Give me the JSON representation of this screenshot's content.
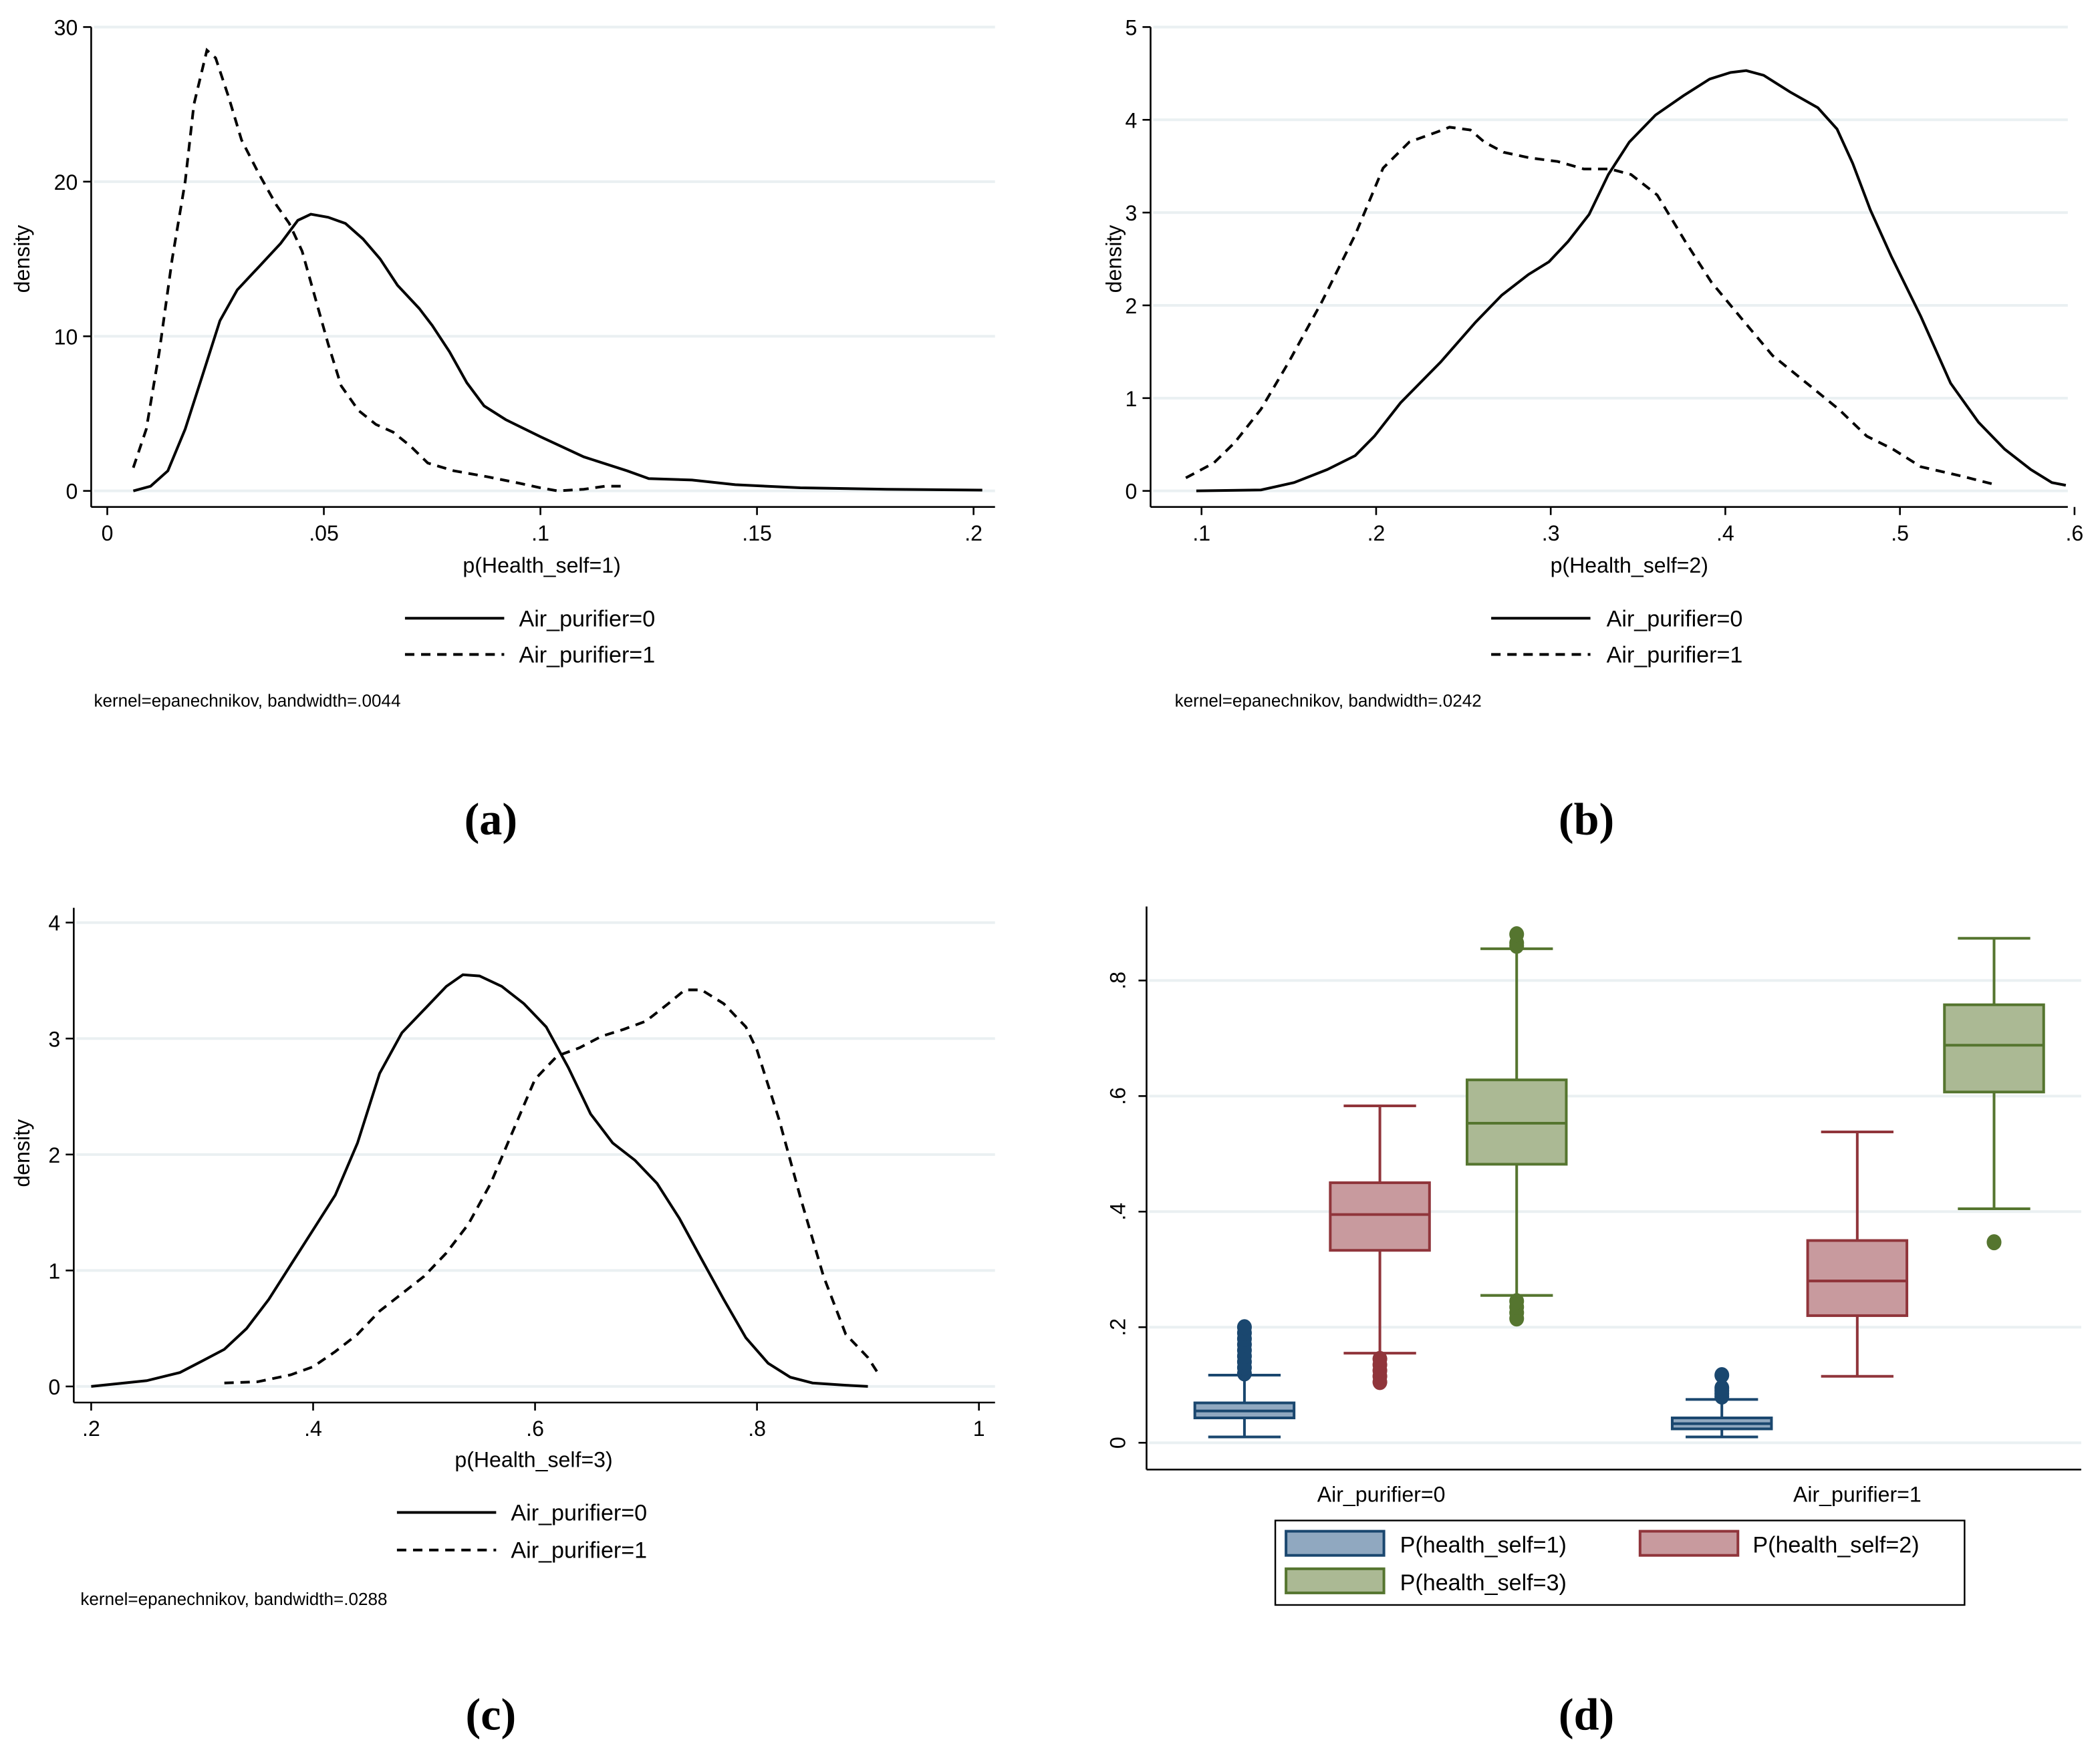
{
  "chart_data": [
    {
      "type": "line",
      "panel_label": "(a)",
      "xlabel": "p(Health_self=1)",
      "ylabel": "density",
      "xlim": [
        0,
        0.2
      ],
      "ylim": [
        0,
        30
      ],
      "xticks": [
        0,
        0.05,
        0.1,
        0.15,
        0.2
      ],
      "xtick_labels": [
        "0",
        ".05",
        ".1",
        ".15",
        ".2"
      ],
      "yticks": [
        0,
        10,
        20,
        30
      ],
      "ytick_labels": [
        "0",
        "10",
        "20",
        "30"
      ],
      "grid": true,
      "legend": "bottom",
      "note": "kernel=epanechnikov, bandwidth=.0044",
      "series": [
        {
          "name": "Air_purifier=0",
          "style": "solid",
          "x": [
            0.006,
            0.01,
            0.014,
            0.018,
            0.022,
            0.026,
            0.03,
            0.035,
            0.04,
            0.044,
            0.047,
            0.051,
            0.055,
            0.059,
            0.063,
            0.067,
            0.072,
            0.075,
            0.079,
            0.083,
            0.087,
            0.092,
            0.1,
            0.11,
            0.12,
            0.125,
            0.135,
            0.145,
            0.16,
            0.18,
            0.202
          ],
          "y": [
            0,
            0.3,
            1.3,
            4,
            7.5,
            11,
            13,
            14.5,
            16,
            17.5,
            17.9,
            17.7,
            17.3,
            16.3,
            15,
            13.3,
            11.8,
            10.7,
            9,
            7,
            5.5,
            4.6,
            3.5,
            2.2,
            1.3,
            0.8,
            0.7,
            0.4,
            0.2,
            0.1,
            0.05
          ]
        },
        {
          "name": "Air_purifier=1",
          "style": "dashed",
          "x": [
            0.006,
            0.009,
            0.012,
            0.015,
            0.018,
            0.02,
            0.023,
            0.025,
            0.028,
            0.031,
            0.035,
            0.039,
            0.042,
            0.045,
            0.048,
            0.051,
            0.054,
            0.058,
            0.062,
            0.066,
            0.07,
            0.074,
            0.08,
            0.088,
            0.095,
            0.1,
            0.104,
            0.11,
            0.115,
            0.12
          ],
          "y": [
            1.5,
            4,
            9,
            15,
            20,
            25,
            28.5,
            28,
            25.5,
            22.7,
            20.5,
            18.5,
            17.3,
            15.5,
            12.5,
            9.5,
            6.8,
            5.2,
            4.3,
            3.8,
            2.9,
            1.8,
            1.3,
            0.9,
            0.5,
            0.2,
            0,
            0.1,
            0.3,
            0.3
          ]
        }
      ]
    },
    {
      "type": "line",
      "panel_label": "(b)",
      "xlabel": "p(Health_self=2)",
      "ylabel": "density",
      "xlim": [
        0.1,
        0.6
      ],
      "ylim": [
        0,
        5
      ],
      "xticks": [
        0.1,
        0.2,
        0.3,
        0.4,
        0.5,
        0.6
      ],
      "xtick_labels": [
        ".1",
        ".2",
        ".3",
        ".4",
        ".5",
        ".6"
      ],
      "yticks": [
        0,
        1,
        2,
        3,
        4,
        5
      ],
      "ytick_labels": [
        "0",
        "1",
        "2",
        "3",
        "4",
        "5"
      ],
      "grid": true,
      "legend": "bottom",
      "note": "kernel=epanechnikov, bandwidth=.0242",
      "series": [
        {
          "name": "Air_purifier=0",
          "style": "solid",
          "x": [
            0.097,
            0.134,
            0.153,
            0.172,
            0.188,
            0.199,
            0.214,
            0.237,
            0.257,
            0.272,
            0.287,
            0.299,
            0.31,
            0.322,
            0.333,
            0.345,
            0.36,
            0.376,
            0.391,
            0.403,
            0.412,
            0.422,
            0.437,
            0.453,
            0.464,
            0.473,
            0.483,
            0.495,
            0.512,
            0.529,
            0.545,
            0.56,
            0.575,
            0.587,
            0.595
          ],
          "y": [
            0,
            0.01,
            0.09,
            0.23,
            0.38,
            0.59,
            0.95,
            1.39,
            1.82,
            2.11,
            2.33,
            2.47,
            2.69,
            2.98,
            3.41,
            3.76,
            4.05,
            4.26,
            4.44,
            4.51,
            4.53,
            4.48,
            4.3,
            4.13,
            3.9,
            3.53,
            3.03,
            2.53,
            1.88,
            1.16,
            0.74,
            0.45,
            0.23,
            0.09,
            0.06
          ]
        },
        {
          "name": "Air_purifier=1",
          "style": "dashed",
          "x": [
            0.091,
            0.107,
            0.119,
            0.134,
            0.15,
            0.169,
            0.188,
            0.204,
            0.219,
            0.235,
            0.242,
            0.254,
            0.262,
            0.273,
            0.288,
            0.304,
            0.319,
            0.334,
            0.346,
            0.361,
            0.377,
            0.392,
            0.411,
            0.427,
            0.446,
            0.465,
            0.481,
            0.496,
            0.512,
            0.535,
            0.556
          ],
          "y": [
            0.14,
            0.3,
            0.52,
            0.88,
            1.39,
            2.04,
            2.76,
            3.48,
            3.76,
            3.87,
            3.92,
            3.89,
            3.76,
            3.65,
            3.59,
            3.55,
            3.47,
            3.47,
            3.41,
            3.19,
            2.69,
            2.25,
            1.82,
            1.46,
            1.17,
            0.88,
            0.59,
            0.45,
            0.26,
            0.16,
            0.06
          ]
        }
      ]
    },
    {
      "type": "line",
      "panel_label": "(c)",
      "xlabel": "p(Health_self=3)",
      "ylabel": "density",
      "xlim": [
        0.2,
        1
      ],
      "ylim": [
        0,
        4
      ],
      "xticks": [
        0.2,
        0.4,
        0.6,
        0.8,
        1
      ],
      "xtick_labels": [
        ".2",
        ".4",
        ".6",
        ".8",
        "1"
      ],
      "yticks": [
        0,
        1,
        2,
        3,
        4
      ],
      "ytick_labels": [
        "0",
        "1",
        "2",
        "3",
        "4"
      ],
      "grid": true,
      "legend": "bottom",
      "note": "kernel=epanechnikov, bandwidth=.0288",
      "series": [
        {
          "name": "Air_purifier=0",
          "style": "solid",
          "x": [
            0.2,
            0.25,
            0.28,
            0.3,
            0.32,
            0.34,
            0.36,
            0.38,
            0.4,
            0.42,
            0.44,
            0.46,
            0.48,
            0.5,
            0.52,
            0.535,
            0.55,
            0.57,
            0.59,
            0.61,
            0.63,
            0.65,
            0.67,
            0.69,
            0.71,
            0.73,
            0.75,
            0.77,
            0.79,
            0.81,
            0.83,
            0.85,
            0.88,
            0.9
          ],
          "y": [
            0,
            0.05,
            0.12,
            0.22,
            0.32,
            0.5,
            0.75,
            1.05,
            1.35,
            1.65,
            2.1,
            2.7,
            3.05,
            3.25,
            3.45,
            3.55,
            3.54,
            3.45,
            3.3,
            3.1,
            2.75,
            2.35,
            2.1,
            1.95,
            1.75,
            1.45,
            1.1,
            0.75,
            0.42,
            0.2,
            0.08,
            0.03,
            0.01,
            0
          ]
        },
        {
          "name": "Air_purifier=1",
          "style": "dashed",
          "x": [
            0.32,
            0.35,
            0.38,
            0.4,
            0.42,
            0.44,
            0.46,
            0.48,
            0.5,
            0.52,
            0.54,
            0.56,
            0.58,
            0.6,
            0.62,
            0.64,
            0.66,
            0.68,
            0.7,
            0.72,
            0.735,
            0.75,
            0.77,
            0.79,
            0.8,
            0.82,
            0.84,
            0.86,
            0.88,
            0.9,
            0.91
          ],
          "y": [
            0.03,
            0.04,
            0.1,
            0.17,
            0.3,
            0.45,
            0.65,
            0.8,
            0.95,
            1.15,
            1.4,
            1.75,
            2.2,
            2.65,
            2.85,
            2.92,
            3.02,
            3.08,
            3.15,
            3.3,
            3.42,
            3.42,
            3.3,
            3.1,
            2.9,
            2.3,
            1.6,
            0.95,
            0.45,
            0.25,
            0.1
          ]
        }
      ]
    },
    {
      "type": "box",
      "panel_label": "(d)",
      "categories": [
        "Air_purifier=0",
        "Air_purifier=1"
      ],
      "ylim": [
        0,
        0.9
      ],
      "yticks": [
        0,
        0.2,
        0.4,
        0.6,
        0.8
      ],
      "ytick_labels": [
        "0",
        ".2",
        ".4",
        ".6",
        ".8"
      ],
      "grid": true,
      "legend": "bottom",
      "series": [
        {
          "name": "P(health_self=1)",
          "color": "#1a476f",
          "fill": "#90a8c0",
          "boxes": [
            {
              "low": 0.01,
              "q1": 0.043,
              "median": 0.055,
              "q3": 0.069,
              "high": 0.117,
              "outliers": [
                0.12,
                0.13,
                0.14,
                0.15,
                0.16,
                0.17,
                0.18,
                0.19,
                0.2
              ]
            },
            {
              "low": 0.01,
              "q1": 0.024,
              "median": 0.033,
              "q3": 0.043,
              "high": 0.075,
              "outliers": [
                0.08,
                0.085,
                0.09,
                0.095,
                0.117
              ]
            }
          ]
        },
        {
          "name": "P(health_self=2)",
          "color": "#90353b",
          "fill": "#c89a9e",
          "boxes": [
            {
              "low": 0.155,
              "q1": 0.333,
              "median": 0.395,
              "q3": 0.45,
              "high": 0.583,
              "outliers": [
                0.105,
                0.115,
                0.125,
                0.135,
                0.145
              ]
            },
            {
              "low": 0.115,
              "q1": 0.22,
              "median": 0.28,
              "q3": 0.35,
              "high": 0.538,
              "outliers": []
            }
          ]
        },
        {
          "name": "P(health_self=3)",
          "color": "#55752f",
          "fill": "#abb994",
          "boxes": [
            {
              "low": 0.255,
              "q1": 0.482,
              "median": 0.553,
              "q3": 0.628,
              "high": 0.855,
              "outliers": [
                0.215,
                0.225,
                0.235,
                0.245,
                0.86,
                0.865,
                0.88
              ]
            },
            {
              "low": 0.405,
              "q1": 0.607,
              "median": 0.688,
              "q3": 0.758,
              "high": 0.873,
              "outliers": [
                0.347
              ]
            }
          ]
        }
      ]
    }
  ]
}
